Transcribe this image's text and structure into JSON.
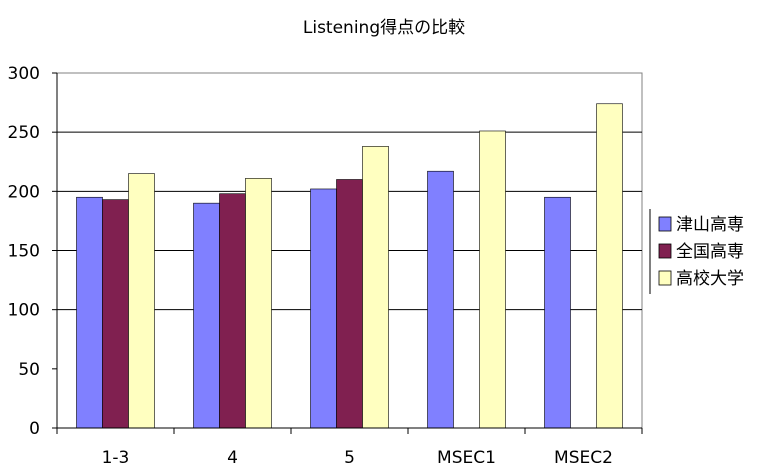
{
  "chart_data": {
    "type": "bar",
    "title": "Listening得点の比較",
    "xlabel": "",
    "ylabel": "",
    "categories": [
      "1-3",
      "4",
      "5",
      "MSEC1",
      "MSEC2"
    ],
    "ylim": [
      0,
      300
    ],
    "yticks": [
      0,
      50,
      100,
      150,
      200,
      250,
      300
    ],
    "gridlines": [
      100,
      150,
      200,
      250
    ],
    "legend_position": "right",
    "series": [
      {
        "name": "津山高専",
        "color": "#8080ff",
        "values": [
          195,
          190,
          202,
          217,
          195
        ]
      },
      {
        "name": "全国高専",
        "color": "#802050",
        "values": [
          193,
          198,
          210,
          null,
          null
        ]
      },
      {
        "name": "高校大学",
        "color": "#ffffc0",
        "values": [
          215,
          211,
          238,
          251,
          274
        ]
      }
    ]
  }
}
